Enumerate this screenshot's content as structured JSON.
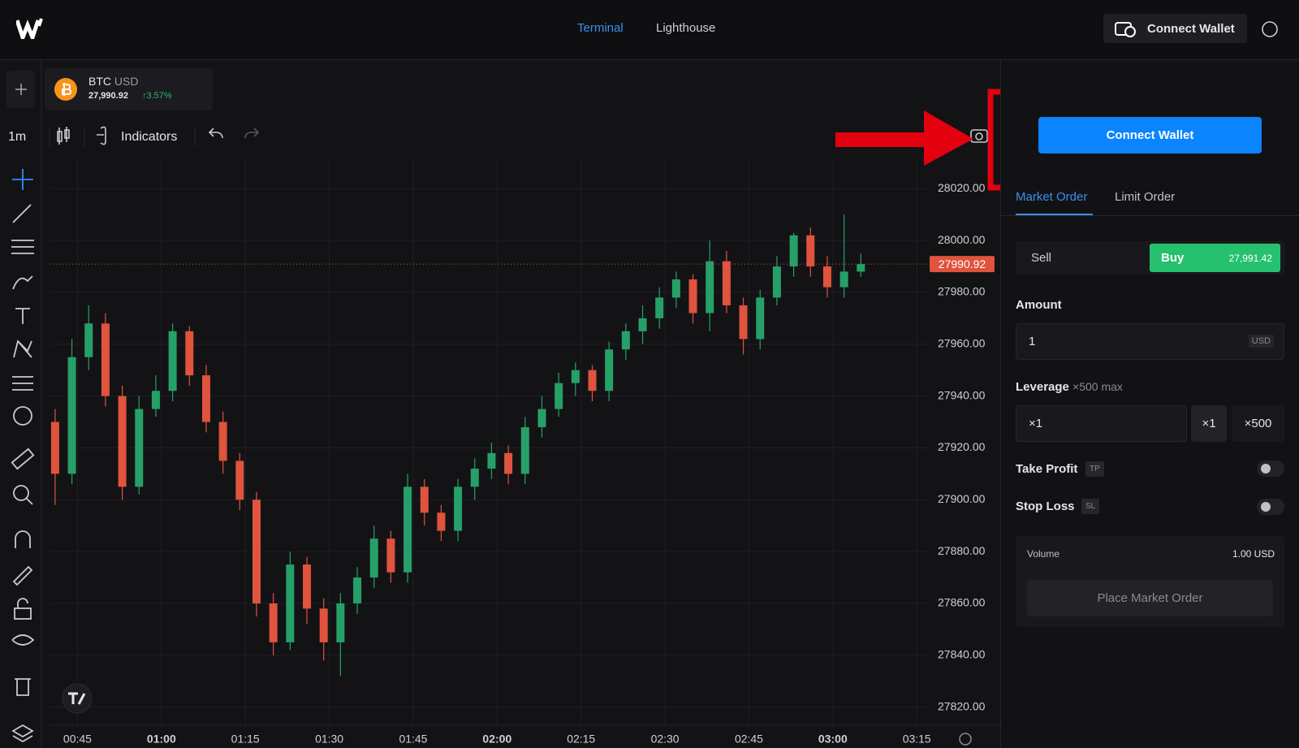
{
  "header": {
    "nav": [
      "Terminal",
      "Lighthouse"
    ],
    "connect_wallet": "Connect Wallet"
  },
  "ticker": {
    "base": "BTC",
    "quote": "USD",
    "price": "27,990.92",
    "change": "↑3.57%"
  },
  "toolbar": {
    "interval": "1m",
    "indicators": "Indicators"
  },
  "chart_data": {
    "type": "candlestick",
    "x": [
      41,
      44,
      47,
      50,
      53,
      56,
      59,
      62,
      65,
      68,
      71,
      74,
      77,
      80,
      83,
      86,
      89,
      92,
      95,
      98,
      101,
      104,
      107,
      110,
      113,
      116,
      119,
      122,
      125,
      128,
      131,
      134,
      137,
      140,
      143,
      146,
      149,
      152,
      155,
      158,
      161,
      164,
      167,
      170,
      173,
      176,
      179,
      182,
      185
    ],
    "open": [
      27930,
      27910,
      27955,
      27968,
      27940,
      27905,
      27935,
      27942,
      27965,
      27948,
      27930,
      27915,
      27900,
      27860,
      27845,
      27875,
      27858,
      27845,
      27860,
      27870,
      27885,
      27872,
      27905,
      27895,
      27888,
      27905,
      27912,
      27918,
      27910,
      27928,
      27935,
      27945,
      27950,
      27942,
      27958,
      27965,
      27970,
      27978,
      27985,
      27972,
      27992,
      27975,
      27962,
      27978,
      27990,
      28002,
      27990,
      27982,
      27988
    ],
    "high": [
      27935,
      27962,
      27975,
      27972,
      27944,
      27940,
      27948,
      27968,
      27967,
      27952,
      27934,
      27918,
      27903,
      27864,
      27880,
      27878,
      27862,
      27864,
      27874,
      27890,
      27888,
      27910,
      27908,
      27898,
      27908,
      27916,
      27922,
      27921,
      27932,
      27940,
      27949,
      27953,
      27952,
      27961,
      27968,
      27975,
      27982,
      27988,
      27987,
      28000,
      27996,
      27978,
      27981,
      27994,
      28003,
      28005,
      27994,
      28010,
      27995
    ],
    "low": [
      27898,
      27906,
      27950,
      27936,
      27900,
      27902,
      27932,
      27938,
      27944,
      27926,
      27910,
      27896,
      27855,
      27840,
      27842,
      27852,
      27838,
      27832,
      27856,
      27866,
      27868,
      27868,
      27890,
      27884,
      27884,
      27900,
      27908,
      27906,
      27906,
      27924,
      27932,
      27940,
      27938,
      27938,
      27954,
      27960,
      27966,
      27974,
      27968,
      27965,
      27972,
      27956,
      27958,
      27975,
      27986,
      27986,
      27978,
      27978,
      27986
    ],
    "close": [
      27910,
      27955,
      27968,
      27940,
      27905,
      27935,
      27942,
      27965,
      27948,
      27930,
      27915,
      27900,
      27860,
      27845,
      27875,
      27858,
      27845,
      27860,
      27870,
      27885,
      27872,
      27905,
      27895,
      27888,
      27905,
      27912,
      27918,
      27910,
      27928,
      27935,
      27945,
      27950,
      27942,
      27958,
      27965,
      27970,
      27978,
      27985,
      27972,
      27992,
      27975,
      27962,
      27978,
      27990,
      28002,
      27990,
      27982,
      27988,
      27990.92
    ],
    "up_color": "#26a069",
    "down_color": "#e0533d",
    "price_line_color": "#e0533d",
    "xlim": [
      40,
      197
    ],
    "xticks": [
      {
        "value": 45,
        "label": "00:45"
      },
      {
        "value": 60,
        "label": "01:00"
      },
      {
        "value": 75,
        "label": "01:15"
      },
      {
        "value": 90,
        "label": "01:30"
      },
      {
        "value": 105,
        "label": "01:45"
      },
      {
        "value": 120,
        "label": "02:00"
      },
      {
        "value": 135,
        "label": "02:15"
      },
      {
        "value": 150,
        "label": "02:30"
      },
      {
        "value": 165,
        "label": "02:45"
      },
      {
        "value": 180,
        "label": "03:00"
      },
      {
        "value": 195,
        "label": "03:15"
      }
    ],
    "ylim": [
      27813,
      28032
    ],
    "yticks": [
      {
        "value": 28020,
        "label": "28020.00"
      },
      {
        "value": 28000,
        "label": "28000.00"
      },
      {
        "value": 27980,
        "label": "27980.00"
      },
      {
        "value": 27960,
        "label": "27960.00"
      },
      {
        "value": 27940,
        "label": "27940.00"
      },
      {
        "value": 27920,
        "label": "27920.00"
      },
      {
        "value": 27900,
        "label": "27900.00"
      },
      {
        "value": 27880,
        "label": "27880.00"
      },
      {
        "value": 27860,
        "label": "27860.00"
      },
      {
        "value": 27840,
        "label": "27840.00"
      },
      {
        "value": 27820,
        "label": "27820.00"
      }
    ],
    "grid": true
  },
  "order_panel": {
    "connect_wallet": "Connect Wallet",
    "tabs": [
      "Market Order",
      "Limit Order"
    ],
    "sell": "Sell",
    "buy": "Buy",
    "buy_price": "27,991.42",
    "amount_label": "Amount",
    "amount_value": "1",
    "amount_unit": "USD",
    "leverage_label": "Leverage",
    "leverage_max": "×500 max",
    "leverage_value": "×1",
    "leverage_buttons": [
      "×1",
      "×500"
    ],
    "take_profit": "Take Profit",
    "tp_badge": "TP",
    "stop_loss": "Stop Loss",
    "sl_badge": "SL",
    "volume_label": "Volume",
    "volume_value": "1.00 USD",
    "place_order": "Place Market Order"
  }
}
